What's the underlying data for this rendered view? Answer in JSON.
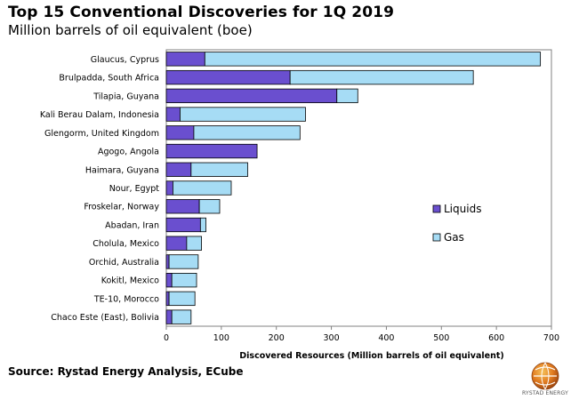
{
  "title": "Top 15 Conventional Discoveries for 1Q 2019",
  "subtitle": "Million barrels of oil equivalent (boe)",
  "source": "Source: Rystad Energy Analysis, ECube",
  "logo_text": "RYSTAD ENERGY",
  "colors": {
    "liquids": "#6a4fcf",
    "gas": "#a6dcf5",
    "border": "#000000",
    "axis": "#808080"
  },
  "chart_data": {
    "type": "bar",
    "orientation": "horizontal",
    "stacked": true,
    "categories": [
      "Glaucus, Cyprus",
      "Brulpadda, South Africa",
      "Tilapia, Guyana",
      "Kali Berau Dalam, Indonesia",
      "Glengorm, United Kingdom",
      "Agogo, Angola",
      "Haimara, Guyana",
      "Nour, Egypt",
      "Froskelar, Norway",
      "Abadan, Iran",
      "Cholula, Mexico",
      "Orchid, Australia",
      "Kokitl, Mexico",
      "TE-10, Morocco",
      "Chaco Este (East), Bolivia"
    ],
    "series": [
      {
        "name": "Liquids",
        "values": [
          70,
          225,
          310,
          25,
          50,
          165,
          45,
          12,
          60,
          62,
          37,
          5,
          10,
          5,
          10
        ]
      },
      {
        "name": "Gas",
        "values": [
          610,
          333,
          38,
          228,
          193,
          0,
          103,
          106,
          37,
          10,
          27,
          53,
          45,
          47,
          35
        ]
      }
    ],
    "xlabel": "Discovered Resources (Million barrels of oil equivalent)",
    "ylabel": "",
    "xlim": [
      0,
      700
    ],
    "xticks": [
      0,
      100,
      200,
      300,
      400,
      500,
      600,
      700
    ],
    "grid": false,
    "legend": {
      "position": "right",
      "entries": [
        "Liquids",
        "Gas"
      ]
    }
  }
}
